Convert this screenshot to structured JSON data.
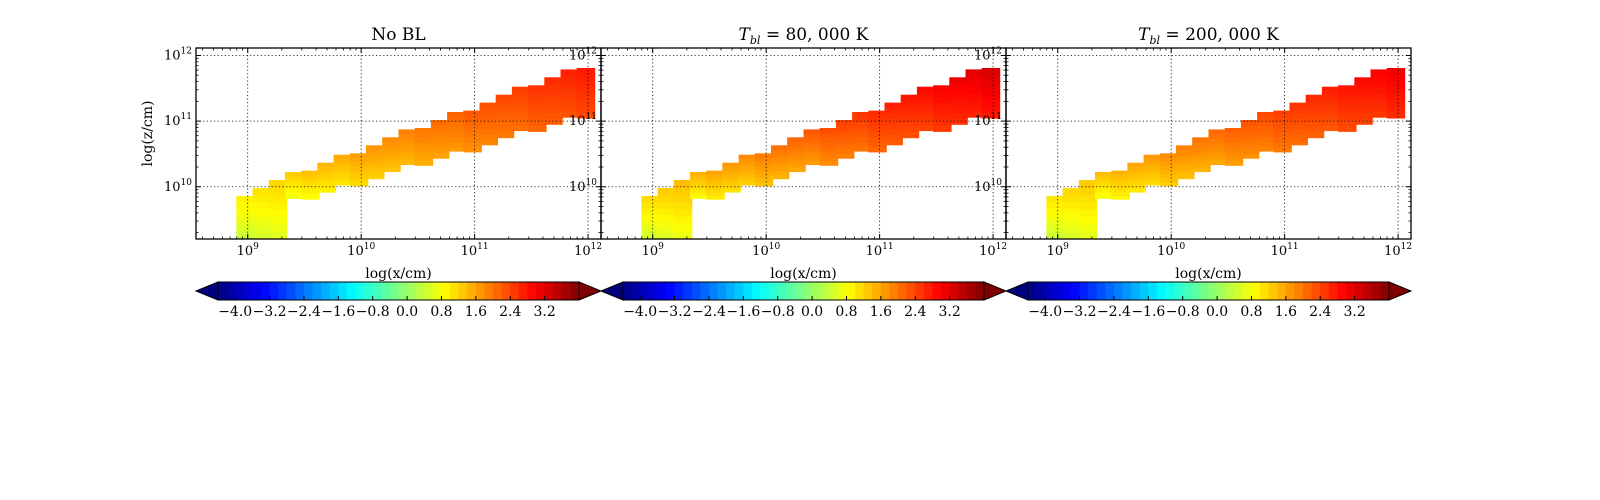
{
  "chart_data": [
    {
      "type": "heatmap",
      "title": "No BL",
      "xlabel": "log(x/cm)",
      "ylabel": "log(z/cm)",
      "xscale": "log",
      "yscale": "log",
      "xlim": [
        350000000.0,
        1300000000000.0
      ],
      "ylim": [
        1600000000.0,
        1300000000000.0
      ],
      "x_ticks": [
        {
          "base": "10",
          "exp": "9",
          "value": 1000000000.0
        },
        {
          "base": "10",
          "exp": "10",
          "value": 10000000000.0
        },
        {
          "base": "10",
          "exp": "11",
          "value": 100000000000.0
        },
        {
          "base": "10",
          "exp": "12",
          "value": 1000000000000.0
        }
      ],
      "y_ticks": [
        {
          "base": "10",
          "exp": "10",
          "value": 10000000000.0
        },
        {
          "base": "10",
          "exp": "11",
          "value": 100000000000.0
        },
        {
          "base": "10",
          "exp": "12",
          "value": 1000000000000.0
        }
      ],
      "grid": true,
      "value_range": [
        0.3,
        2.8
      ],
      "colorbar": {
        "colormap": "jet",
        "range": [
          -4.4,
          4.0
        ],
        "extend": "both",
        "ticks": [
          "−4.0",
          "−3.2",
          "−2.4",
          "−1.6",
          "−0.8",
          "0.0",
          "0.8",
          "1.6",
          "2.4",
          "3.2"
        ]
      }
    },
    {
      "type": "heatmap",
      "title_parts": {
        "symbol": "T",
        "subscript": "bl",
        "rest": " = 80, 000 K"
      },
      "xlabel": "log(x/cm)",
      "ylabel": "",
      "xscale": "log",
      "yscale": "log",
      "xlim": [
        350000000.0,
        1300000000000.0
      ],
      "ylim": [
        1600000000.0,
        1300000000000.0
      ],
      "x_ticks": [
        {
          "base": "10",
          "exp": "9",
          "value": 1000000000.0
        },
        {
          "base": "10",
          "exp": "10",
          "value": 10000000000.0
        },
        {
          "base": "10",
          "exp": "11",
          "value": 100000000000.0
        },
        {
          "base": "10",
          "exp": "12",
          "value": 1000000000000.0
        }
      ],
      "y_ticks": [
        {
          "base": "10",
          "exp": "10",
          "value": 10000000000.0
        },
        {
          "base": "10",
          "exp": "11",
          "value": 100000000000.0
        },
        {
          "base": "10",
          "exp": "12",
          "value": 1000000000000.0
        }
      ],
      "grid": true,
      "value_range": [
        0.35,
        3.3
      ],
      "colorbar": {
        "colormap": "jet",
        "range": [
          -4.4,
          4.0
        ],
        "extend": "both",
        "ticks": [
          "−4.0",
          "−3.2",
          "−2.4",
          "−1.6",
          "−0.8",
          "0.0",
          "0.8",
          "1.6",
          "2.4",
          "3.2"
        ]
      }
    },
    {
      "type": "heatmap",
      "title_parts": {
        "symbol": "T",
        "subscript": "bl",
        "rest": " = 200, 000 K"
      },
      "xlabel": "log(x/cm)",
      "ylabel": "",
      "xscale": "log",
      "yscale": "log",
      "xlim": [
        350000000.0,
        1300000000000.0
      ],
      "ylim": [
        1600000000.0,
        1300000000000.0
      ],
      "x_ticks": [
        {
          "base": "10",
          "exp": "9",
          "value": 1000000000.0
        },
        {
          "base": "10",
          "exp": "10",
          "value": 10000000000.0
        },
        {
          "base": "10",
          "exp": "11",
          "value": 100000000000.0
        },
        {
          "base": "10",
          "exp": "12",
          "value": 1000000000000.0
        }
      ],
      "y_ticks": [
        {
          "base": "10",
          "exp": "10",
          "value": 10000000000.0
        },
        {
          "base": "10",
          "exp": "11",
          "value": 100000000000.0
        },
        {
          "base": "10",
          "exp": "12",
          "value": 1000000000000.0
        }
      ],
      "grid": true,
      "value_range": [
        0.3,
        3.1
      ],
      "colorbar": {
        "colormap": "jet",
        "range": [
          -4.4,
          4.0
        ],
        "extend": "both",
        "ticks": [
          "−4.0",
          "−3.2",
          "−2.4",
          "−1.6",
          "−0.8",
          "0.0",
          "0.8",
          "1.6",
          "2.4",
          "3.2"
        ]
      }
    }
  ]
}
